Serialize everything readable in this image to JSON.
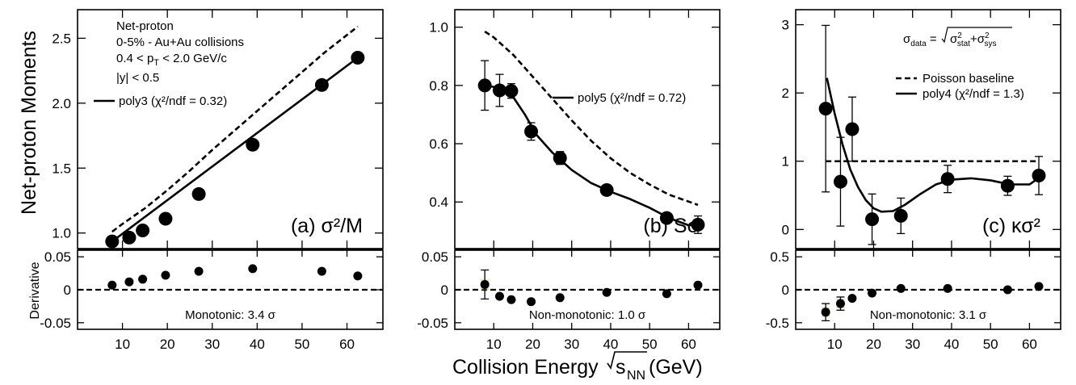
{
  "labels": {
    "ylabel_top": "Net-proton Moments",
    "ylabel_bottom": "Derivative",
    "xlabel_main": "Collision Energy ",
    "xlabel_sqrt": "s",
    "xlabel_sub": "NN",
    "xlabel_unit": " (GeV)"
  },
  "annotations": {
    "a_line1": "Net-proton",
    "a_line2": "0-5% - Au+Au collisions",
    "a_line3a": "0.4 < p",
    "a_line3sub": "T",
    "a_line3b": " < 2.0 GeV/c",
    "a_line4": "|y| < 0.5",
    "c_sigma": "σ",
    "c_sigma_sub": "data",
    "c_eq": " = ",
    "c_sig2": "σ",
    "c_stat": "stat",
    "c_plus": "+σ",
    "c_sys": "sys",
    "c_sq": "2"
  },
  "colors": {
    "ink": "#000000",
    "box": "#e3dcb8"
  },
  "chart_data": [
    {
      "type": "scatter",
      "panel_label": "(a) σ²/M",
      "x": [
        7.7,
        11.5,
        14.5,
        19.6,
        27,
        39,
        54.4,
        62.4
      ],
      "values": [
        0.935,
        0.965,
        1.02,
        1.11,
        1.3,
        1.68,
        2.14,
        2.35
      ],
      "errors": [
        0.02,
        0.02,
        0.02,
        0.02,
        0.02,
        0.02,
        0.02,
        0.02
      ],
      "fit": {
        "name": "poly3 (χ²/ndf = 0.32)",
        "x": [
          7.7,
          62.4
        ],
        "y": [
          0.935,
          2.35
        ]
      },
      "baseline": {
        "x": [
          7.7,
          10,
          15,
          20,
          25,
          30,
          35,
          40,
          45,
          50,
          55,
          62.4
        ],
        "y": [
          1.01,
          1.07,
          1.19,
          1.33,
          1.48,
          1.64,
          1.79,
          1.94,
          2.09,
          2.24,
          2.39,
          2.59
        ]
      },
      "xlim": [
        0,
        68
      ],
      "ylim": [
        0.88,
        2.72
      ],
      "yticks": [
        1.0,
        1.5,
        2.0,
        2.5
      ],
      "ytick_labels": [
        "1.0",
        "1.5",
        "2.0",
        "2.5"
      ],
      "derivative": {
        "values": [
          0.007,
          0.012,
          0.016,
          0.022,
          0.028,
          0.032,
          0.028,
          0.021
        ],
        "errors": [
          0,
          0,
          0,
          0,
          0,
          0,
          0,
          0
        ],
        "ylim": [
          -0.06,
          0.06
        ],
        "yticks": [
          -0.05,
          0,
          0.05
        ],
        "ytick_labels": [
          "-0.05",
          "0",
          "0.05"
        ],
        "label": "Monotonic: 3.4 σ"
      }
    },
    {
      "type": "scatter",
      "panel_label": "(b) Sσ",
      "x": [
        7.7,
        11.5,
        14.5,
        19.6,
        27,
        39,
        54.4,
        62.4
      ],
      "values": [
        0.8,
        0.783,
        0.781,
        0.642,
        0.551,
        0.441,
        0.345,
        0.322
      ],
      "errors": [
        0.085,
        0.055,
        0.025,
        0.03,
        0.022,
        0.012,
        0.01,
        0.03
      ],
      "fit": {
        "name": "poly5 (χ²/ndf = 0.72)",
        "x": [
          7.7,
          10,
          13,
          15,
          18,
          21,
          25,
          30,
          35,
          40,
          45,
          50,
          55,
          60,
          63
        ],
        "y": [
          0.8,
          0.795,
          0.778,
          0.76,
          0.7,
          0.63,
          0.57,
          0.51,
          0.465,
          0.435,
          0.41,
          0.38,
          0.345,
          0.32,
          0.322
        ]
      },
      "baseline": {
        "x": [
          7.7,
          10,
          15,
          20,
          25,
          30,
          35,
          40,
          45,
          50,
          55,
          62.4
        ],
        "y": [
          0.985,
          0.965,
          0.905,
          0.83,
          0.755,
          0.68,
          0.61,
          0.55,
          0.5,
          0.46,
          0.425,
          0.39
        ]
      },
      "xlim": [
        0,
        68
      ],
      "ylim": [
        0.24,
        1.06
      ],
      "yticks": [
        0.4,
        0.6,
        0.8,
        1.0
      ],
      "ytick_labels": [
        "0.4",
        "0.6",
        "0.8",
        "1.0"
      ],
      "derivative": {
        "values": [
          0.008,
          -0.01,
          -0.015,
          -0.018,
          -0.012,
          -0.004,
          -0.006,
          0.007
        ],
        "errors": [
          0.022,
          0,
          0,
          0,
          0,
          0,
          0,
          0
        ],
        "ylim": [
          -0.06,
          0.06
        ],
        "yticks": [
          -0.05,
          0,
          0.05
        ],
        "ytick_labels": [
          "-0.05",
          "0",
          "0.05"
        ],
        "label": "Non-monotonic: 1.0 σ"
      }
    },
    {
      "type": "scatter",
      "panel_label": "(c) κσ²",
      "x": [
        7.7,
        11.5,
        14.5,
        19.6,
        27,
        39,
        54.4,
        62.4
      ],
      "values": [
        1.77,
        0.7,
        1.47,
        0.15,
        0.2,
        0.74,
        0.64,
        0.79
      ],
      "errors": [
        1.22,
        0.65,
        0.47,
        0.37,
        0.26,
        0.2,
        0.14,
        0.28
      ],
      "fit": {
        "name": "poly4 (χ²/ndf = 1.3)",
        "x": [
          8,
          10,
          12,
          14,
          16,
          18,
          20,
          22,
          25,
          28,
          32,
          36,
          40,
          45,
          50,
          55,
          60,
          63
        ],
        "y": [
          2.22,
          1.7,
          1.25,
          0.88,
          0.62,
          0.43,
          0.31,
          0.26,
          0.27,
          0.36,
          0.52,
          0.66,
          0.73,
          0.75,
          0.72,
          0.66,
          0.66,
          0.78
        ]
      },
      "baseline": {
        "name": "Poisson baseline",
        "x": [
          7.7,
          62.4
        ],
        "y": [
          1,
          1
        ]
      },
      "xlim": [
        0,
        68
      ],
      "ylim": [
        -0.28,
        3.22
      ],
      "yticks": [
        0,
        1,
        2,
        3
      ],
      "ytick_labels": [
        "0",
        "1",
        "2",
        "3"
      ],
      "derivative": {
        "values": [
          -0.34,
          -0.21,
          -0.13,
          -0.05,
          0.02,
          0.02,
          0.0,
          0.05
        ],
        "errors": [
          0.13,
          0.1,
          0,
          0,
          0,
          0,
          0,
          0
        ],
        "ylim": [
          -0.6,
          0.6
        ],
        "yticks": [
          -0.5,
          0,
          0.5
        ],
        "ytick_labels": [
          "-0.5",
          "0",
          "0.5"
        ],
        "label": "Non-monotonic: 3.1 σ"
      }
    }
  ],
  "x_axis": {
    "ticks": [
      10,
      20,
      30,
      40,
      50,
      60
    ],
    "tick_labels": [
      "10",
      "20",
      "30",
      "40",
      "50",
      "60"
    ]
  }
}
